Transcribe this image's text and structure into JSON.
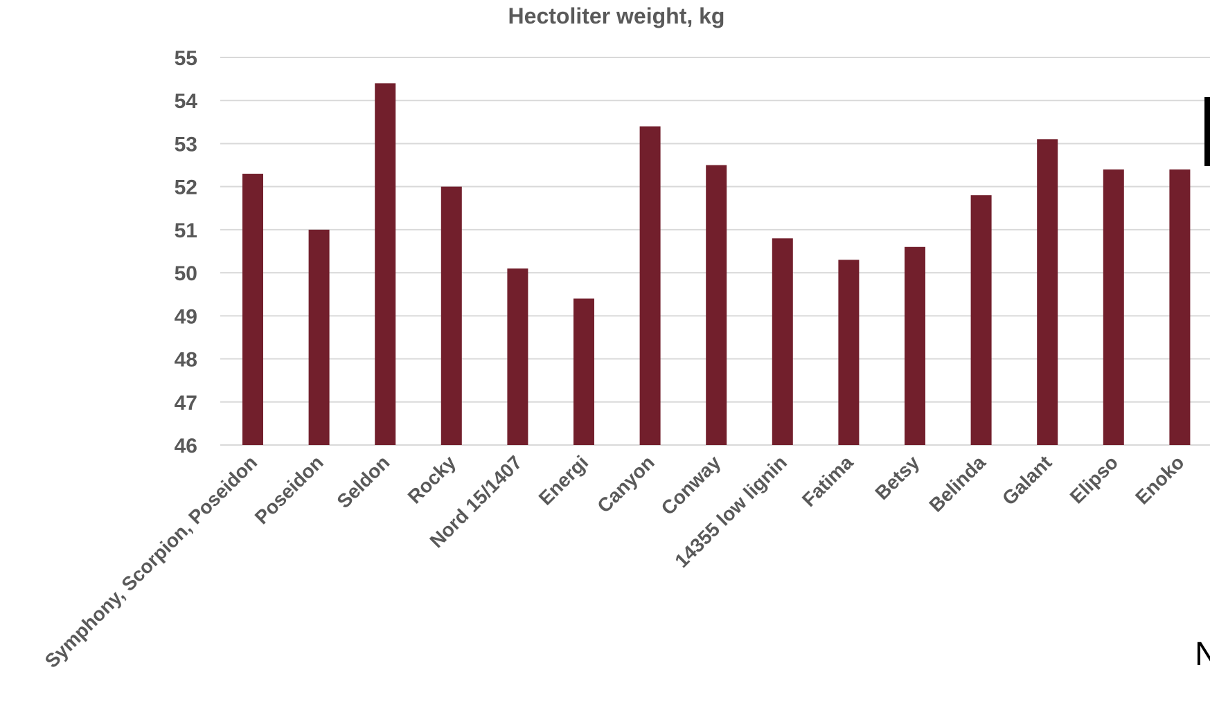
{
  "chart_data": {
    "type": "bar",
    "title": "Hectoliter weight, kg",
    "xlabel": "",
    "ylabel": "",
    "ylim": [
      46,
      55
    ],
    "yticks": [
      46,
      47,
      48,
      49,
      50,
      51,
      52,
      53,
      54,
      55
    ],
    "grid": true,
    "legend": "none",
    "bar_color": "#721f2c",
    "categories": [
      "Symphony, Scorpion, Poseidon",
      "Poseidon",
      "Seldon",
      "Rocky",
      "Nord 15/1407",
      "Energi",
      "Canyon",
      "Conway",
      "14355 low lignin",
      "Fatima",
      "Betsy",
      "Belinda",
      "Galant",
      "Elipso",
      "Enoko"
    ],
    "values": [
      52.3,
      51.0,
      54.4,
      52.0,
      50.1,
      49.4,
      53.4,
      52.5,
      50.8,
      50.3,
      50.6,
      51.8,
      53.1,
      52.4,
      52.4
    ]
  },
  "edge_text": "N"
}
